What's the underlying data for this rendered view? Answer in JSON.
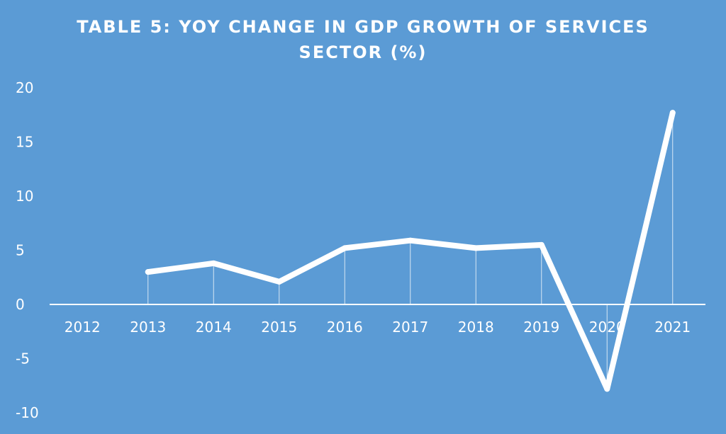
{
  "chart_data": {
    "type": "line",
    "title": "TABLE 5: YOY CHANGE IN GDP GROWTH  OF SERVICES SECTOR (%)",
    "title_lines": [
      "TABLE 5: YOY CHANGE IN GDP GROWTH  OF SERVICES",
      "SECTOR (%)"
    ],
    "categories": [
      "2012",
      "2013",
      "2014",
      "2015",
      "2016",
      "2017",
      "2018",
      "2019",
      "2020",
      "2021"
    ],
    "series": [
      {
        "values": [
          null,
          3.0,
          3.8,
          2.1,
          5.2,
          5.9,
          5.2,
          5.5,
          -7.8,
          17.7
        ]
      }
    ],
    "yticks": [
      20,
      15,
      10,
      5,
      0,
      -5,
      -10
    ],
    "ylim": [
      -10,
      20
    ],
    "xlabel": "",
    "ylabel": "",
    "grid": false,
    "drop_lines": true,
    "legend": "none",
    "colors": {
      "background": "#5b9bd5",
      "line": "#ffffff",
      "text": "#ffffff"
    }
  }
}
